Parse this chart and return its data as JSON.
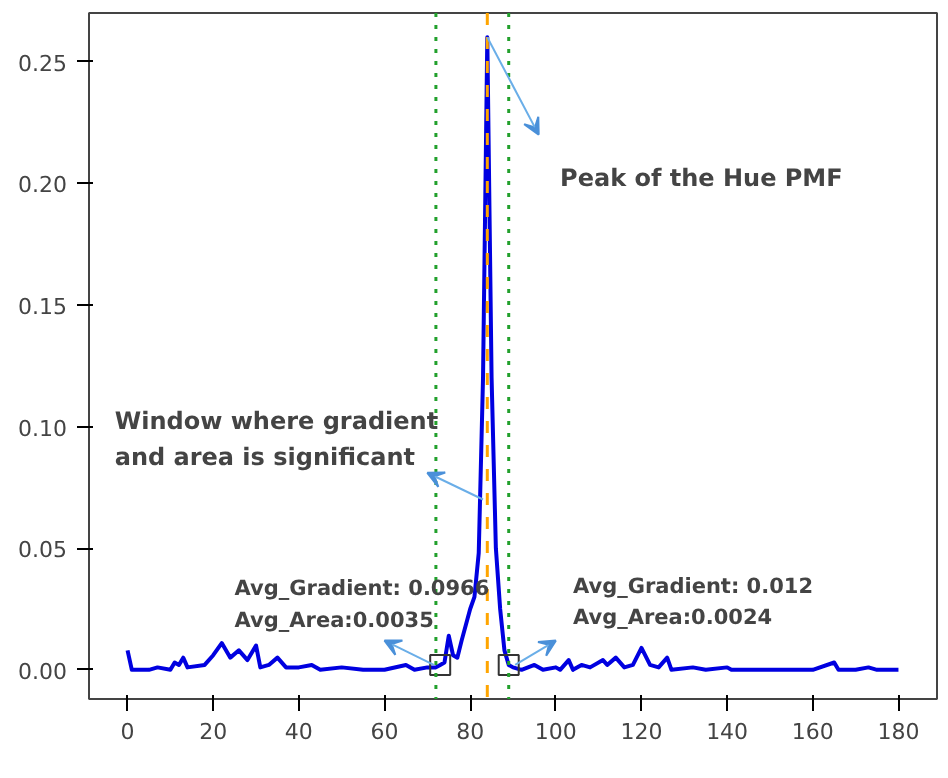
{
  "chart_data": {
    "type": "line",
    "x": [
      0,
      1,
      5,
      7,
      10,
      11,
      12,
      13,
      14,
      18,
      20,
      22,
      24,
      26,
      28,
      30,
      31,
      33,
      35,
      37,
      40,
      43,
      45,
      50,
      55,
      60,
      65,
      67,
      70,
      72,
      73,
      74,
      75,
      76,
      77,
      78,
      80,
      81,
      82,
      83,
      84,
      85,
      86,
      87,
      88,
      89,
      90,
      92,
      95,
      97,
      100,
      101,
      103,
      104,
      106,
      108,
      111,
      112,
      114,
      116,
      118,
      120,
      122,
      124,
      126,
      127,
      132,
      135,
      140,
      141,
      150,
      160,
      165,
      166,
      170,
      173,
      175,
      180
    ],
    "series": [
      {
        "color": "#0000e0",
        "values": [
          0.008,
          0.0,
          0.0,
          0.001,
          0.0,
          0.003,
          0.002,
          0.005,
          0.001,
          0.002,
          0.006,
          0.011,
          0.005,
          0.008,
          0.004,
          0.01,
          0.001,
          0.002,
          0.005,
          0.001,
          0.001,
          0.002,
          0.0,
          0.001,
          0.0,
          0.0,
          0.002,
          0.0,
          0.001,
          0.001,
          0.002,
          0.003,
          0.014,
          0.006,
          0.005,
          0.012,
          0.025,
          0.03,
          0.048,
          0.12,
          0.26,
          0.12,
          0.05,
          0.025,
          0.008,
          0.002,
          0.001,
          0.0,
          0.002,
          0.0,
          0.001,
          0.0,
          0.004,
          0.0,
          0.002,
          0.001,
          0.004,
          0.002,
          0.005,
          0.001,
          0.002,
          0.009,
          0.002,
          0.001,
          0.005,
          0.0,
          0.001,
          0.0,
          0.001,
          0.0,
          0.0,
          0.0,
          0.003,
          0.0,
          0.0,
          0.001,
          0.0,
          0.0
        ]
      }
    ],
    "xlim": [
      -9,
      189
    ],
    "ylim": [
      -0.012,
      0.27
    ],
    "xticks": [
      0,
      20,
      40,
      60,
      80,
      100,
      120,
      140,
      160,
      180
    ],
    "yticks": [
      {
        "value": 0,
        "label": "0.00"
      },
      {
        "value": 0.05,
        "label": "0.05"
      },
      {
        "value": 0.1,
        "label": "0.10"
      },
      {
        "value": 0.15,
        "label": "0.15"
      },
      {
        "value": 0.2,
        "label": "0.20"
      },
      {
        "value": 0.25,
        "label": "0.25"
      }
    ],
    "line_style": "solid",
    "grid": false,
    "ref_lines": [
      {
        "axis": "x",
        "value": 84,
        "label": null,
        "color": "#ffa500",
        "line_style": "dashed"
      },
      {
        "axis": "x",
        "value": 72,
        "label": null,
        "color": "#22a02c",
        "line_style": "dotted"
      },
      {
        "axis": "x",
        "value": 89,
        "label": null,
        "color": "#22a02c",
        "line_style": "dotted"
      }
    ],
    "annotations": [
      "Peak of the Hue PMF",
      {
        "text": "Window where gradient\nand area is significant",
        "x": 83,
        "y": 0.07
      },
      {
        "text": "Avg_Gradient: 0.0966\nAvg_Area:0.0035",
        "x": 73,
        "y": 0.002
      },
      {
        "text": "Avg_Gradient: 0.012\nAvg_Area:0.0024",
        "x": 89,
        "y": 0.002
      }
    ]
  }
}
